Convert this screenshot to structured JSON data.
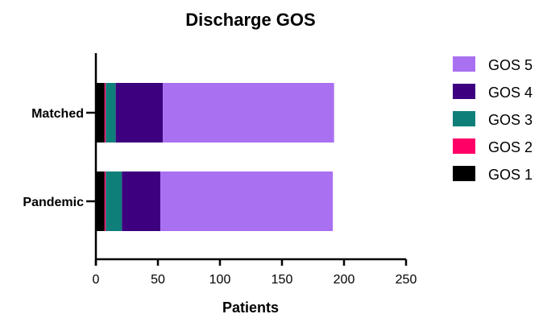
{
  "chart_data": {
    "type": "bar",
    "orientation": "horizontal",
    "stacked": true,
    "title": "Discharge GOS",
    "xlabel": "Patients",
    "ylabel": "",
    "xlim": [
      0,
      250
    ],
    "xticks": [
      0,
      50,
      100,
      150,
      200,
      250
    ],
    "categories": [
      "Matched",
      "Pandemic"
    ],
    "series": [
      {
        "name": "GOS 1",
        "color": "#000000",
        "values": [
          7,
          7
        ]
      },
      {
        "name": "GOS 2",
        "color": "#ff0066",
        "values": [
          1,
          1
        ]
      },
      {
        "name": "GOS 3",
        "color": "#0f7f7a",
        "values": [
          8,
          13
        ]
      },
      {
        "name": "GOS 4",
        "color": "#3d007f",
        "values": [
          38,
          31
        ]
      },
      {
        "name": "GOS 5",
        "color": "#a970f2",
        "values": [
          138,
          139
        ]
      }
    ],
    "legend_order": [
      "GOS 5",
      "GOS 4",
      "GOS 3",
      "GOS 2",
      "GOS 1"
    ],
    "legend_position": "right",
    "grid": false
  }
}
